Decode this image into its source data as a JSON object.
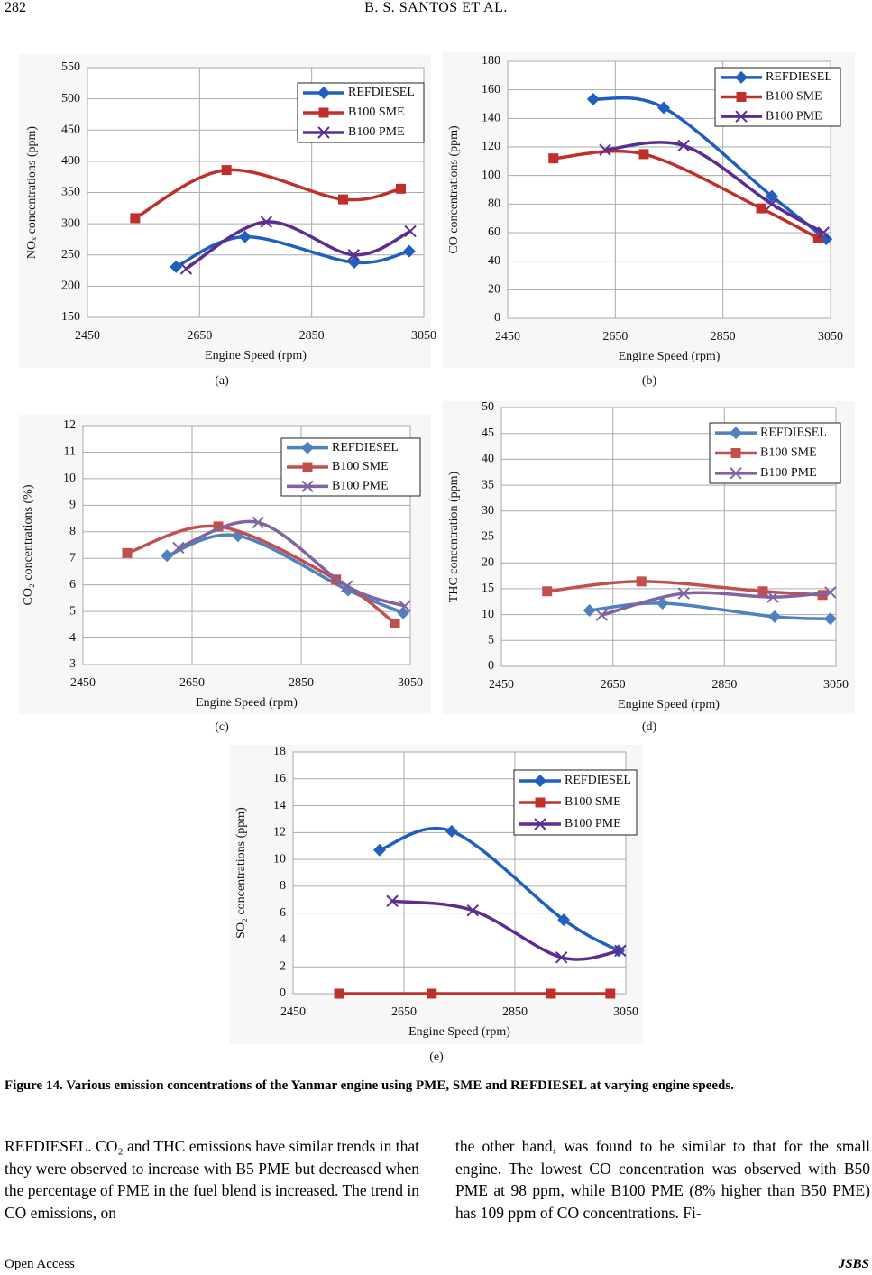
{
  "header": {
    "page_number": "282",
    "running_head": "B. S. SANTOS ET AL."
  },
  "chart_data": [
    {
      "type": "line",
      "x_label": "Engine Speed (rpm)",
      "y_label": "NOₓ concentrations (ppm)",
      "caption": "(a)",
      "xlim": [
        2450,
        3050
      ],
      "xticks": [
        2450,
        2650,
        2850,
        3050
      ],
      "ylim": [
        150,
        550
      ],
      "yticks": [
        150,
        200,
        250,
        300,
        350,
        400,
        450,
        500,
        550
      ],
      "grid": true,
      "legend": "upper right",
      "series": [
        {
          "name": "REFDIESEL",
          "color": "#1f5fbf",
          "marker": "diamond",
          "x": [
            2608,
            2731,
            2926,
            3024
          ],
          "values": [
            231,
            279,
            238,
            256
          ]
        },
        {
          "name": "B100 SME",
          "color": "#c0302b",
          "marker": "square",
          "x": [
            2535,
            2698,
            2906,
            3009
          ],
          "values": [
            309,
            386,
            339,
            356
          ]
        },
        {
          "name": "B100 PME",
          "color": "#5b2d8f",
          "marker": "x",
          "x": [
            2626,
            2769,
            2925,
            3026
          ],
          "values": [
            228,
            303,
            250,
            288
          ]
        }
      ]
    },
    {
      "type": "line",
      "x_label": "Engine Speed (rpm)",
      "y_label": "CO concentrations (ppm)",
      "caption": "(b)",
      "xlim": [
        2450,
        3050
      ],
      "xticks": [
        2450,
        2650,
        2850,
        3050
      ],
      "ylim": [
        0,
        180
      ],
      "yticks": [
        0,
        20,
        40,
        60,
        80,
        100,
        120,
        140,
        160,
        180
      ],
      "grid": true,
      "legend": "upper right",
      "series": [
        {
          "name": "REFDIESEL",
          "color": "#1f5fbf",
          "marker": "diamond",
          "x": [
            2609,
            2740,
            2941,
            3042
          ],
          "values": [
            153.5,
            147.5,
            85.5,
            55.5
          ]
        },
        {
          "name": "B100 SME",
          "color": "#c0302b",
          "marker": "square",
          "x": [
            2535,
            2703,
            2921,
            3027
          ],
          "values": [
            112,
            115,
            77,
            56
          ]
        },
        {
          "name": "B100 PME",
          "color": "#5b2d8f",
          "marker": "x",
          "x": [
            2631,
            2777,
            2941,
            3037
          ],
          "values": [
            118,
            121,
            80,
            60
          ]
        }
      ]
    },
    {
      "type": "line",
      "x_label": "Engine Speed (rpm)",
      "y_label": "CO₂ concentrations (%)",
      "caption": "(c)",
      "xlim": [
        2450,
        3050
      ],
      "xticks": [
        2450,
        2650,
        2850,
        3050
      ],
      "ylim": [
        3,
        12
      ],
      "yticks": [
        3,
        4,
        5,
        6,
        7,
        8,
        9,
        10,
        11,
        12
      ],
      "grid": true,
      "legend": "upper right",
      "series": [
        {
          "name": "REFDIESEL",
          "color": "#4f81bd",
          "marker": "diamond",
          "x": [
            2604,
            2734,
            2936,
            3037
          ],
          "values": [
            7.1,
            7.85,
            5.8,
            4.95
          ]
        },
        {
          "name": "B100 SME",
          "color": "#c0504d",
          "marker": "square",
          "x": [
            2531,
            2698,
            2914,
            3022
          ],
          "values": [
            7.2,
            8.2,
            6.2,
            4.55
          ]
        },
        {
          "name": "B100 PME",
          "color": "#8064a2",
          "marker": "x",
          "x": [
            2625,
            2771,
            2934,
            3040
          ],
          "values": [
            7.4,
            8.35,
            5.95,
            5.2
          ]
        }
      ]
    },
    {
      "type": "line",
      "x_label": "Engine Speed (rpm)",
      "y_label": "THC concentration (ppm)",
      "caption": "(d)",
      "xlim": [
        2450,
        3050
      ],
      "xticks": [
        2450,
        2650,
        2850,
        3050
      ],
      "ylim": [
        0,
        50
      ],
      "yticks": [
        0,
        5,
        10,
        15,
        20,
        25,
        30,
        35,
        40,
        45,
        50
      ],
      "grid": true,
      "legend": "upper right",
      "series": [
        {
          "name": "REFDIESEL",
          "color": "#4f81bd",
          "marker": "diamond",
          "x": [
            2608,
            2739,
            2940,
            3040
          ],
          "values": [
            10.8,
            12.2,
            9.6,
            9.2
          ]
        },
        {
          "name": "B100 SME",
          "color": "#c0504d",
          "marker": "square",
          "x": [
            2532,
            2701,
            2919,
            3026
          ],
          "values": [
            14.5,
            16.4,
            14.5,
            13.8
          ]
        },
        {
          "name": "B100 PME",
          "color": "#8064a2",
          "marker": "x",
          "x": [
            2630,
            2777,
            2937,
            3040
          ],
          "values": [
            9.9,
            14.1,
            13.4,
            14.3
          ]
        }
      ]
    },
    {
      "type": "line",
      "x_label": "Engine Speed (rpm)",
      "y_label": "SO₂ concentrations (ppm)",
      "caption": "(e)",
      "xlim": [
        2450,
        3050
      ],
      "xticks": [
        2450,
        2650,
        2850,
        3050
      ],
      "ylim": [
        0,
        18
      ],
      "yticks": [
        0,
        2,
        4,
        6,
        8,
        10,
        12,
        14,
        16,
        18
      ],
      "grid": true,
      "legend": "upper right",
      "series": [
        {
          "name": "REFDIESEL",
          "color": "#1f5fbf",
          "marker": "diamond",
          "x": [
            2606,
            2736,
            2938,
            3037
          ],
          "values": [
            10.7,
            12.1,
            5.5,
            3.2
          ]
        },
        {
          "name": "B100 SME",
          "color": "#c0302b",
          "marker": "square",
          "x": [
            2533,
            2700,
            2915,
            3022
          ],
          "values": [
            0,
            0,
            0,
            0
          ]
        },
        {
          "name": "B100 PME",
          "color": "#5b2d8f",
          "marker": "x",
          "x": [
            2629,
            2774,
            2934,
            3040
          ],
          "values": [
            6.9,
            6.2,
            2.7,
            3.2
          ]
        }
      ]
    }
  ],
  "figure_caption": "Figure 14. Various emission concentrations of the Yanmar engine using PME, SME and REFDIESEL at varying engine speeds.",
  "body": {
    "left": "REFDIESEL. CO₂ and THC emissions have similar trends in that they were observed to increase with B5 PME but decreased when the percentage of PME in the fuel blend is increased. The trend in CO emissions, on",
    "right": "the other hand, was found to be similar to that for the small engine. The lowest CO concentration was observed with B50 PME at 98 ppm, while B100 PME (8% higher than B50 PME) has 109 ppm of CO concentrations. Fi-"
  },
  "footer": {
    "left": "Open Access",
    "right": "JSBS"
  }
}
